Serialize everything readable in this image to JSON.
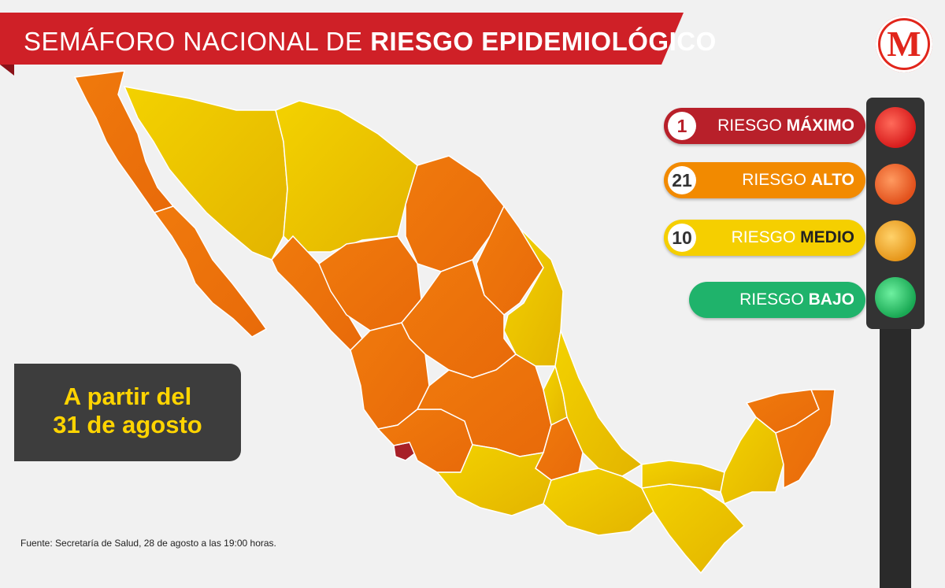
{
  "banner": {
    "title_regular": "SEMÁFORO NACIONAL DE ",
    "title_bold": "RIESGO EPIDEMIOLÓGICO"
  },
  "logo": {
    "letter": "M",
    "color": "#e1261c"
  },
  "legend": [
    {
      "count": "1",
      "level_word": "RIESGO ",
      "level_bold": "MÁXIMO",
      "color": "#b8202a",
      "lamp": "#e8271f"
    },
    {
      "count": "21",
      "level_word": "RIESGO ",
      "level_bold": "ALTO",
      "color": "#f28a00",
      "lamp": "#f26b1f"
    },
    {
      "count": "10",
      "level_word": "RIESGO ",
      "level_bold": "MEDIO",
      "color": "#f5cf00",
      "lamp": "#f2a51f"
    },
    {
      "count": "",
      "level_word": "RIESGO ",
      "level_bold": "BAJO",
      "color": "#1fb36b",
      "lamp": "#2ec46b"
    }
  ],
  "date_box": {
    "line1": "A partir del",
    "line2": "31 de agosto"
  },
  "source": "Fuente: Secretaría de Salud, 28 de agosto a las 19:00 horas.",
  "map_colors": {
    "maximo": "#a82028",
    "alto": "#ee7d0a",
    "medio": "#e9c000"
  }
}
